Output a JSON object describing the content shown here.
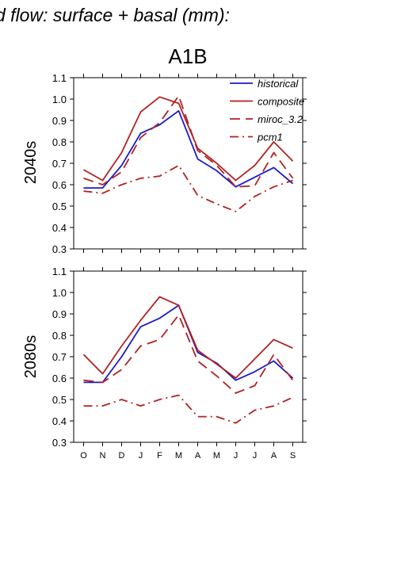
{
  "figure": {
    "suptitle": "d flow: surface + basal (mm):",
    "scenario": "A1B"
  },
  "chart_data": [
    {
      "type": "line",
      "panel_label": "2040s",
      "categories": [
        "O",
        "N",
        "D",
        "J",
        "F",
        "M",
        "A",
        "M",
        "J",
        "J",
        "A",
        "S"
      ],
      "ylim": [
        0.3,
        1.1
      ],
      "yticks": [
        "0.3",
        "0.4",
        "0.5",
        "0.6",
        "0.7",
        "0.8",
        "0.9",
        "1.0",
        "1.1"
      ],
      "legend_position": "top-right",
      "series": [
        {
          "name": "historical",
          "color": "#1a1acc",
          "dash": "solid",
          "values": [
            0.585,
            0.585,
            0.69,
            0.84,
            0.88,
            0.945,
            0.72,
            0.665,
            0.59,
            0.635,
            0.68,
            0.605
          ]
        },
        {
          "name": "composite",
          "color": "#b22222",
          "dash": "solid",
          "values": [
            0.67,
            0.62,
            0.75,
            0.94,
            1.01,
            0.98,
            0.77,
            0.7,
            0.62,
            0.69,
            0.8,
            0.71
          ]
        },
        {
          "name": "miroc_3.2",
          "color": "#b22222",
          "dash": "longdash",
          "values": [
            0.63,
            0.6,
            0.66,
            0.82,
            0.89,
            1.015,
            0.76,
            0.69,
            0.59,
            0.595,
            0.75,
            0.63
          ]
        },
        {
          "name": "pcm1",
          "color": "#b22222",
          "dash": "dashdot",
          "values": [
            0.57,
            0.56,
            0.6,
            0.63,
            0.64,
            0.69,
            0.55,
            0.51,
            0.475,
            0.545,
            0.59,
            0.62
          ]
        }
      ]
    },
    {
      "type": "line",
      "panel_label": "2080s",
      "categories": [
        "O",
        "N",
        "D",
        "J",
        "F",
        "M",
        "A",
        "M",
        "J",
        "J",
        "A",
        "S"
      ],
      "ylim": [
        0.3,
        1.1
      ],
      "yticks": [
        "0.3",
        "0.4",
        "0.5",
        "0.6",
        "0.7",
        "0.8",
        "0.9",
        "1.0",
        "1.1"
      ],
      "series": [
        {
          "name": "historical",
          "color": "#1a1acc",
          "dash": "solid",
          "values": [
            0.58,
            0.58,
            0.7,
            0.84,
            0.88,
            0.94,
            0.72,
            0.67,
            0.59,
            0.63,
            0.68,
            0.6
          ]
        },
        {
          "name": "composite",
          "color": "#b22222",
          "dash": "solid",
          "values": [
            0.71,
            0.62,
            0.75,
            0.87,
            0.98,
            0.94,
            0.73,
            0.665,
            0.6,
            0.69,
            0.78,
            0.74
          ]
        },
        {
          "name": "miroc_3.2",
          "color": "#b22222",
          "dash": "longdash",
          "values": [
            0.59,
            0.58,
            0.64,
            0.75,
            0.78,
            0.895,
            0.68,
            0.61,
            0.53,
            0.565,
            0.71,
            0.59
          ]
        },
        {
          "name": "pcm1",
          "color": "#b22222",
          "dash": "dashdot",
          "values": [
            0.47,
            0.47,
            0.5,
            0.47,
            0.5,
            0.52,
            0.42,
            0.42,
            0.39,
            0.45,
            0.47,
            0.51
          ]
        }
      ]
    }
  ]
}
